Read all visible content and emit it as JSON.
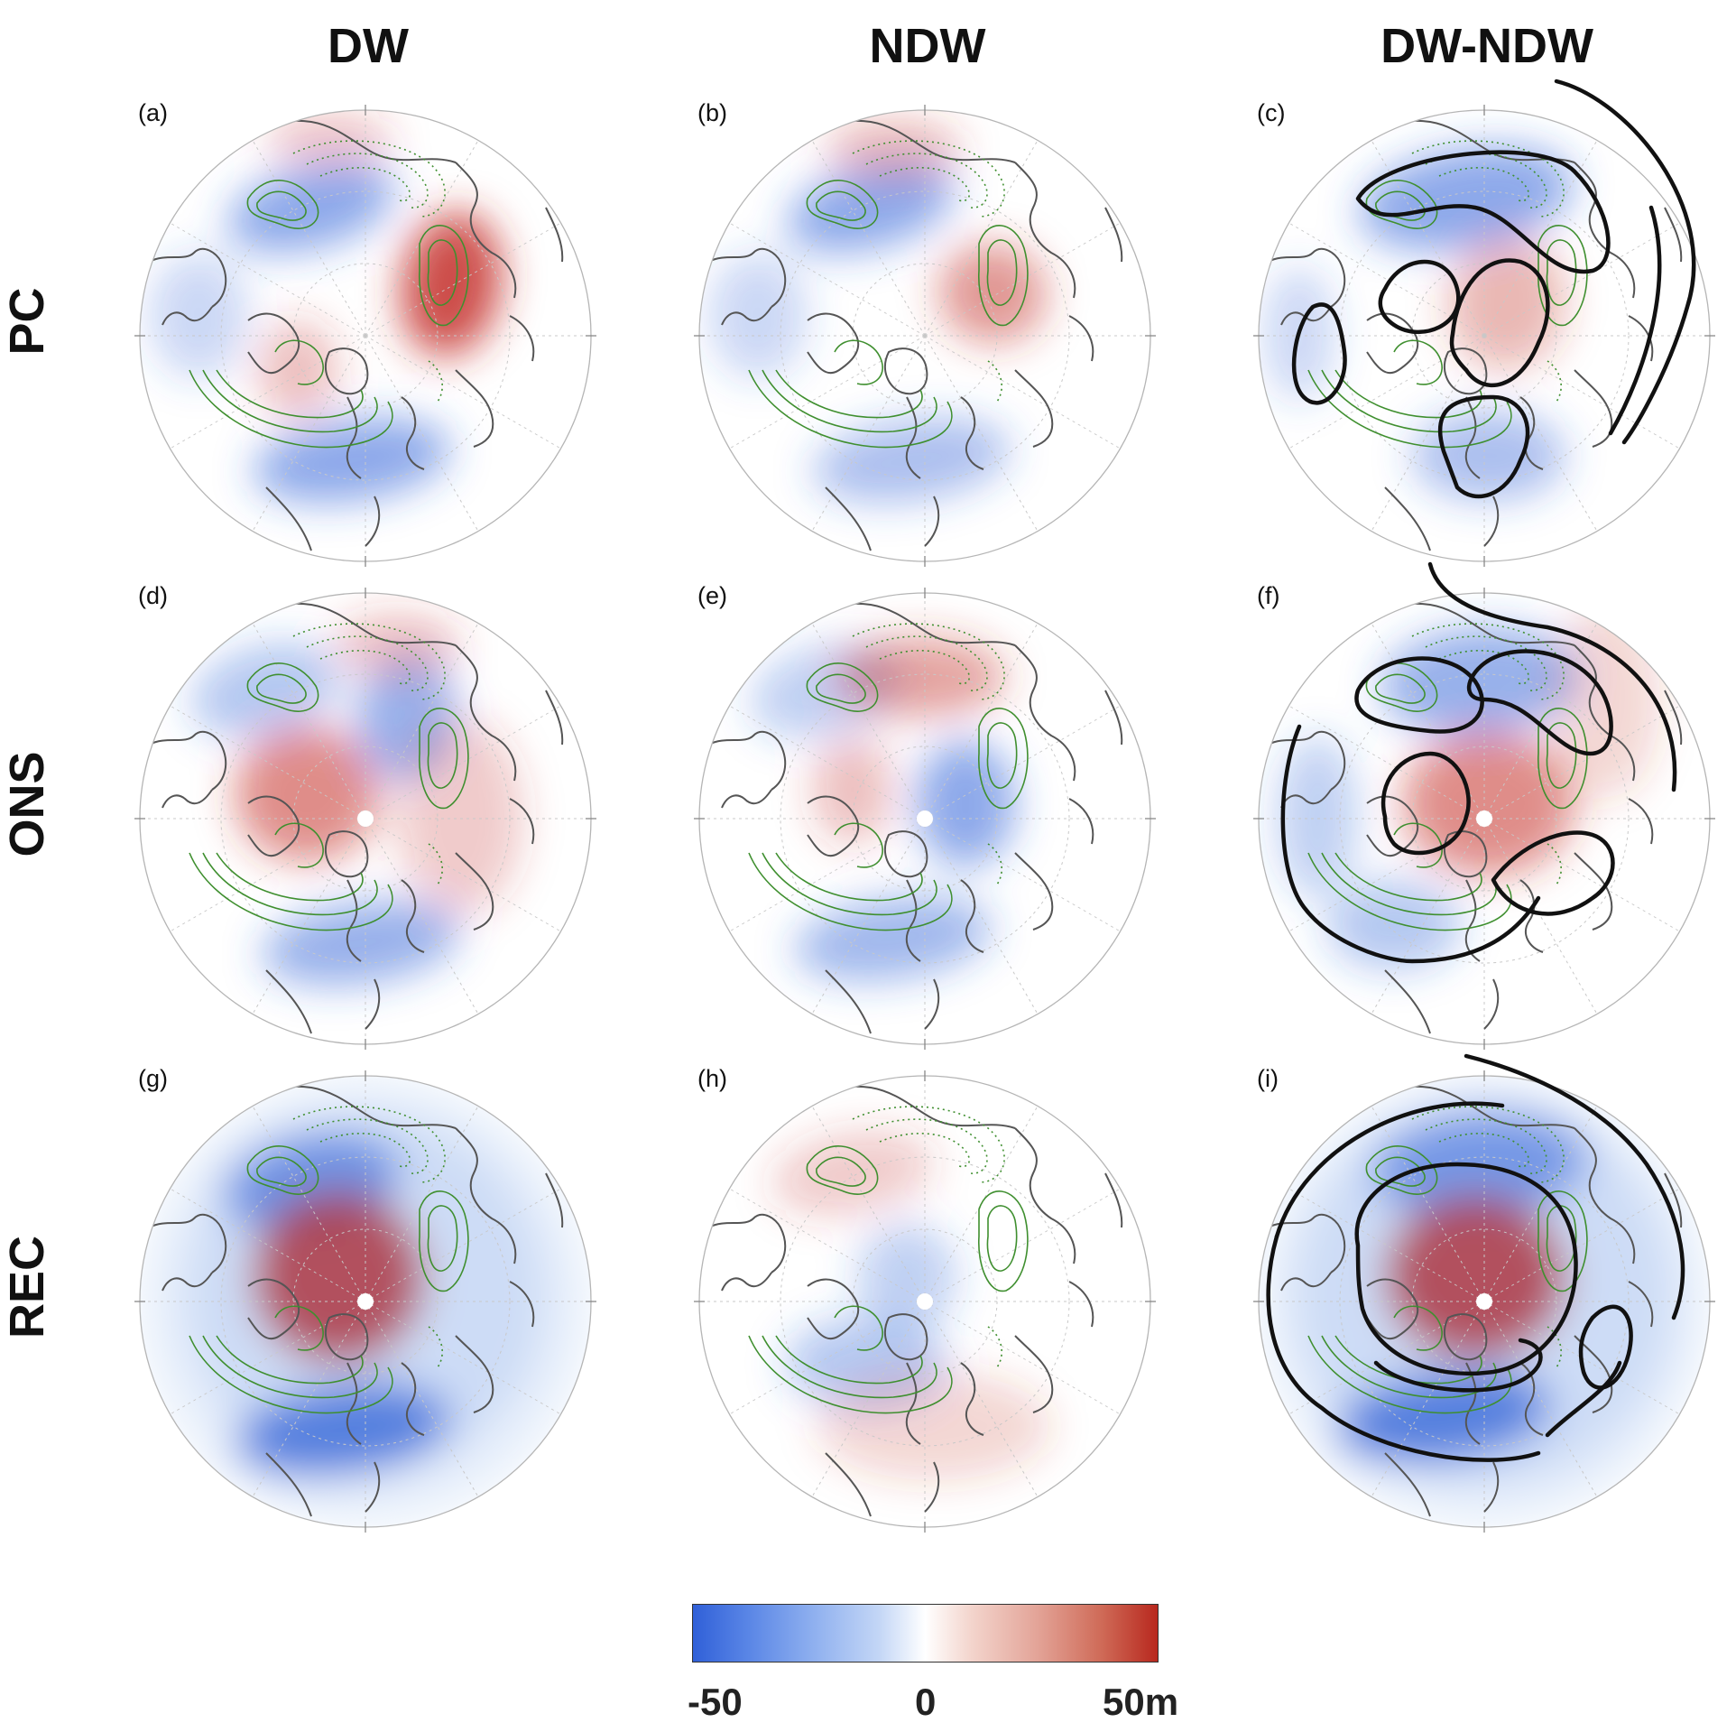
{
  "columns": [
    "DW",
    "NDW",
    "DW-NDW"
  ],
  "rows": [
    "PC",
    "ONS",
    "REC"
  ],
  "panels": [
    {
      "label": "(a)",
      "row": "PC",
      "col": "DW",
      "pattern": "pc"
    },
    {
      "label": "(b)",
      "row": "PC",
      "col": "NDW",
      "pattern": "pc_ndw"
    },
    {
      "label": "(c)",
      "row": "PC",
      "col": "DW-NDW",
      "pattern": "pc_diff"
    },
    {
      "label": "(d)",
      "row": "ONS",
      "col": "DW",
      "pattern": "ons"
    },
    {
      "label": "(e)",
      "row": "ONS",
      "col": "NDW",
      "pattern": "ons_ndw"
    },
    {
      "label": "(f)",
      "row": "ONS",
      "col": "DW-NDW",
      "pattern": "ons_diff"
    },
    {
      "label": "(g)",
      "row": "REC",
      "col": "DW",
      "pattern": "rec"
    },
    {
      "label": "(h)",
      "row": "REC",
      "col": "NDW",
      "pattern": "rec_ndw"
    },
    {
      "label": "(i)",
      "row": "REC",
      "col": "DW-NDW",
      "pattern": "rec_diff"
    }
  ],
  "colorbar": {
    "ticks": [
      "-50",
      "0",
      "50m"
    ],
    "min_color": "#3060d8",
    "mid_color": "#ffffff",
    "max_color": "#b8281e"
  },
  "colors": {
    "contour": "#3f8f2f",
    "coast": "#555555",
    "significance": "#111111",
    "grid": "#c8c8c8"
  }
}
